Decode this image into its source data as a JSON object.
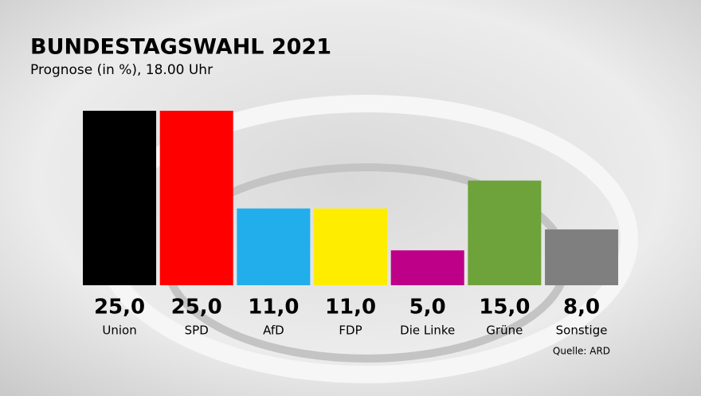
{
  "chart_data": {
    "type": "bar",
    "title": "BUNDESTAGSWAHL 2021",
    "subtitle": "Prognose (in %), 18.00 Uhr",
    "categories": [
      "Union",
      "SPD",
      "AfD",
      "FDP",
      "Die Linke",
      "Grüne",
      "Sonstige"
    ],
    "values": [
      25.0,
      25.0,
      11.0,
      11.0,
      5.0,
      15.0,
      8.0
    ],
    "value_labels": [
      "25,0",
      "25,0",
      "11,0",
      "11,0",
      "5,0",
      "15,0",
      "8,0"
    ],
    "colors": [
      "#000000",
      "#ff0000",
      "#21aeea",
      "#ffed00",
      "#be0088",
      "#6ea23a",
      "#7f7f7f"
    ],
    "source": "Quelle: ARD"
  }
}
